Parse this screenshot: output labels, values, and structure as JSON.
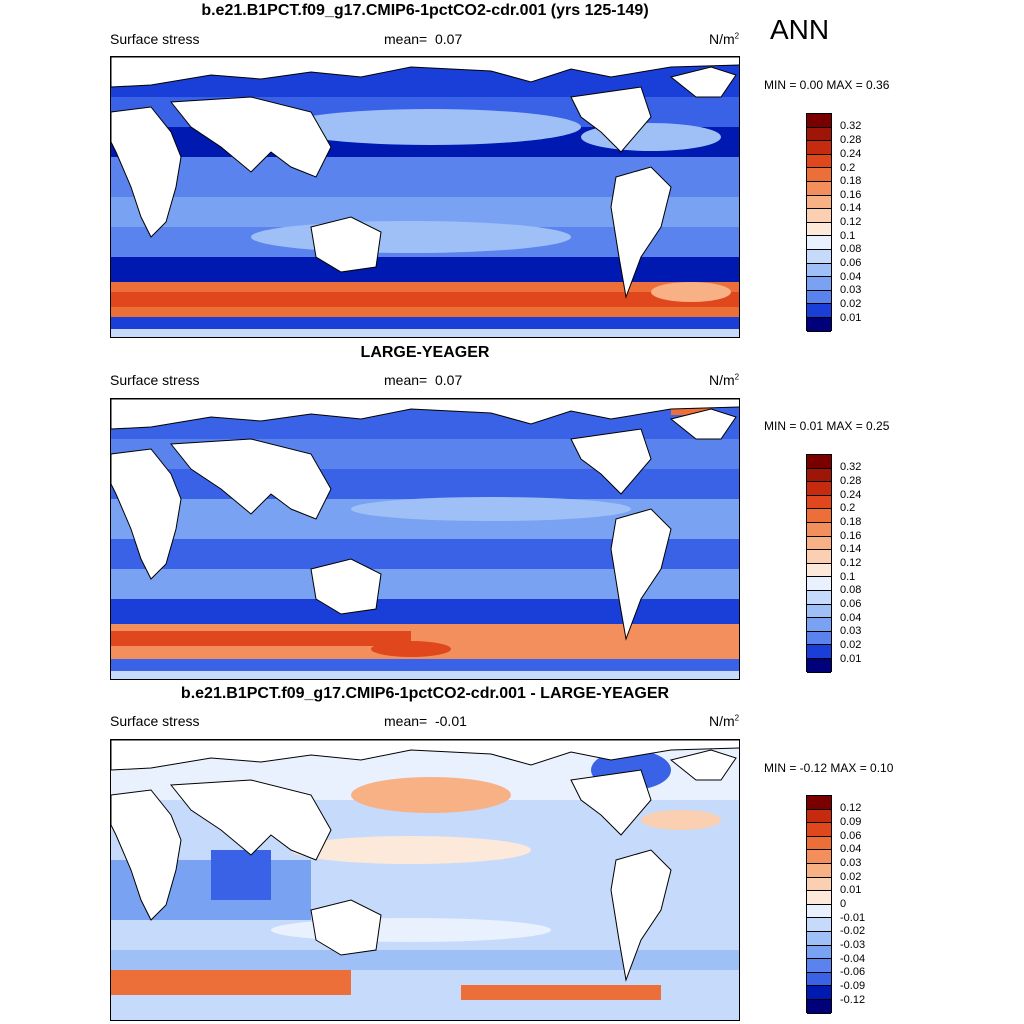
{
  "season": "ANN",
  "colors": {
    "land": "#ffffff",
    "coast": "#000000",
    "positive_scale": [
      "#00007a",
      "#0019b0",
      "#1a3fd8",
      "#3a62e6",
      "#5a83ee",
      "#7aa2f3",
      "#9fc0f7",
      "#c6dbfb",
      "#e9f1fe",
      "#fde9d9",
      "#fbd0b2",
      "#f8b085",
      "#f28f5c",
      "#ec6f3a",
      "#e0471c",
      "#c62a0f",
      "#9e1608",
      "#7a0000"
    ],
    "diff_scale": [
      "#00007a",
      "#0019b0",
      "#1a3fd8",
      "#3a62e6",
      "#5a83ee",
      "#7aa2f3",
      "#9fc0f7",
      "#c6dbfb",
      "#e9f1fe",
      "#ffffff",
      "#fde9d9",
      "#fbd0b2",
      "#f8b085",
      "#f28f5c",
      "#ec6f3a",
      "#e0471c",
      "#c62a0f",
      "#7a0000"
    ]
  },
  "panels": [
    {
      "title": "b.e21.B1PCT.f09_g17.CMIP6-1pctCO2-cdr.001 (yrs 125-149)",
      "variable": "Surface stress",
      "mean_label": "mean=",
      "mean_value": "0.07",
      "units": "N/m",
      "units_sup": "2",
      "minmax": "MIN =   0.00 MAX =   0.36",
      "colorbar_ticks": [
        "0.32",
        "0.28",
        "0.24",
        "0.2",
        "0.18",
        "0.16",
        "0.14",
        "0.12",
        "0.1",
        "0.08",
        "0.06",
        "0.04",
        "0.03",
        "0.02",
        "0.01"
      ]
    },
    {
      "title": "LARGE-YEAGER",
      "variable": "Surface stress",
      "mean_label": "mean=",
      "mean_value": "0.07",
      "units": "N/m",
      "units_sup": "2",
      "minmax": "MIN =   0.01 MAX =   0.25",
      "colorbar_ticks": [
        "0.32",
        "0.28",
        "0.24",
        "0.2",
        "0.18",
        "0.16",
        "0.14",
        "0.12",
        "0.1",
        "0.08",
        "0.06",
        "0.04",
        "0.03",
        "0.02",
        "0.01"
      ]
    },
    {
      "title": "b.e21.B1PCT.f09_g17.CMIP6-1pctCO2-cdr.001 - LARGE-YEAGER",
      "variable": "Surface stress",
      "mean_label": "mean=",
      "mean_value": "-0.01",
      "units": "N/m",
      "units_sup": "2",
      "minmax": "MIN =  -0.12 MAX =   0.10",
      "colorbar_ticks": [
        "0.12",
        "0.09",
        "0.06",
        "0.04",
        "0.03",
        "0.02",
        "0.01",
        "0",
        "-0.01",
        "-0.02",
        "-0.03",
        "-0.04",
        "-0.06",
        "-0.09",
        "-0.12"
      ]
    }
  ]
}
